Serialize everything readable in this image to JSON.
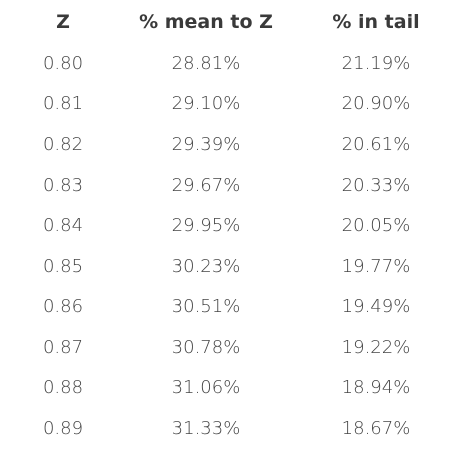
{
  "table": {
    "headers": [
      "Z",
      "% mean to Z",
      "% in tail"
    ],
    "rows": [
      [
        "0.80",
        "28.81%",
        "21.19%"
      ],
      [
        "0.81",
        "29.10%",
        "20.90%"
      ],
      [
        "0.82",
        "29.39%",
        "20.61%"
      ],
      [
        "0.83",
        "29.67%",
        "20.33%"
      ],
      [
        "0.84",
        "29.95%",
        "20.05%"
      ],
      [
        "0.85",
        "30.23%",
        "19.77%"
      ],
      [
        "0.86",
        "30.51%",
        "19.49%"
      ],
      [
        "0.87",
        "30.78%",
        "19.22%"
      ],
      [
        "0.88",
        "31.06%",
        "18.94%"
      ],
      [
        "0.89",
        "31.33%",
        "18.67%"
      ]
    ]
  }
}
